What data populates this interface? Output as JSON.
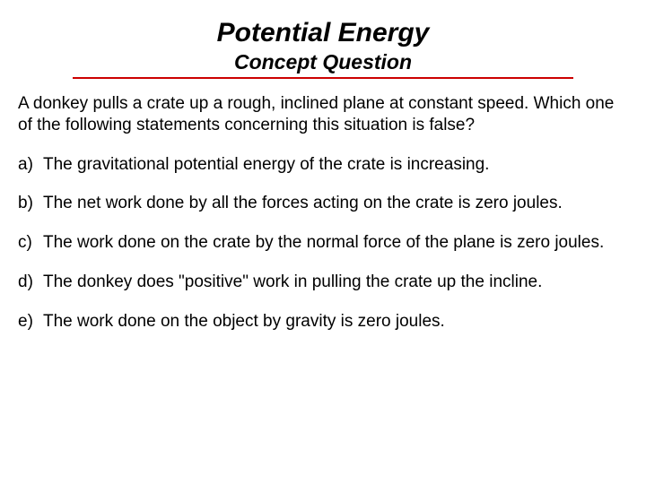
{
  "title": "Potential Energy",
  "subtitle": "Concept Question",
  "question": "A donkey pulls a crate up a rough, inclined plane at constant speed. Which one of the following statements concerning this situation is false?",
  "options": [
    {
      "letter": "a)",
      "text": "The gravitational potential energy of the crate is increasing."
    },
    {
      "letter": "b)",
      "text": "The net work done by all the forces acting on the crate is zero joules."
    },
    {
      "letter": "c)",
      "text": "The work done on the crate by the normal force of the plane is zero joules."
    },
    {
      "letter": "d)",
      "text": "The donkey does \"positive\" work in pulling the crate up the incline."
    },
    {
      "letter": "e)",
      "text": "The work done on the object by gravity is zero joules."
    }
  ],
  "colors": {
    "underline": "#cc0000",
    "text": "#000000",
    "background": "#ffffff"
  },
  "fonts": {
    "title_size": 30,
    "subtitle_size": 23,
    "body_size": 19,
    "family": "Arial"
  }
}
